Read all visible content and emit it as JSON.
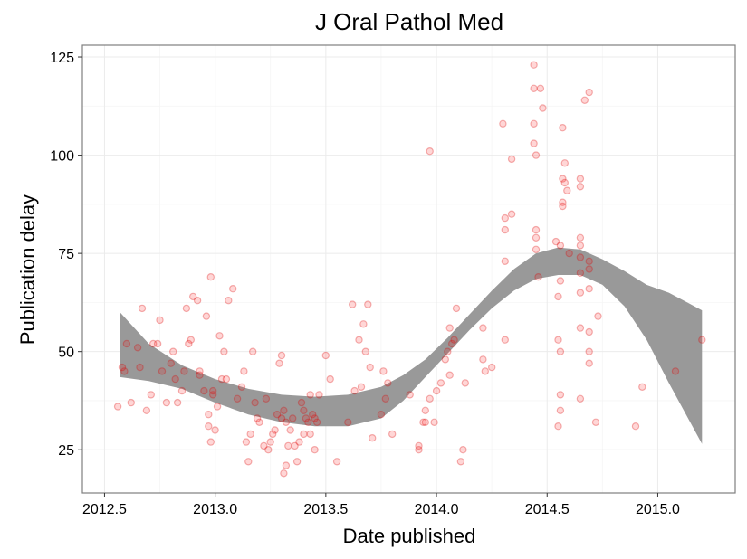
{
  "chart_data": {
    "type": "scatter",
    "title": "J Oral Pathol Med",
    "xlabel": "Date published",
    "ylabel": "Publication delay",
    "xlim": [
      2012.4,
      2015.35
    ],
    "ylim": [
      14,
      128
    ],
    "x_ticks": [
      2012.5,
      2013.0,
      2013.5,
      2014.0,
      2014.5,
      2015.0
    ],
    "x_tick_labels": [
      "2012.5",
      "2013.0",
      "2013.5",
      "2014.0",
      "2014.5",
      "2015.0"
    ],
    "y_ticks": [
      25,
      50,
      75,
      100,
      125
    ],
    "y_tick_labels": [
      "25",
      "50",
      "75",
      "100",
      "125"
    ],
    "grid": true,
    "legend": "none",
    "point_color": "#ff0000",
    "band_color": "#999999",
    "points": [
      [
        2012.56,
        36
      ],
      [
        2012.58,
        46
      ],
      [
        2012.59,
        45
      ],
      [
        2012.6,
        52
      ],
      [
        2012.62,
        37
      ],
      [
        2012.65,
        51
      ],
      [
        2012.66,
        46
      ],
      [
        2012.67,
        61
      ],
      [
        2012.69,
        35
      ],
      [
        2012.71,
        39
      ],
      [
        2012.72,
        52
      ],
      [
        2012.74,
        52
      ],
      [
        2012.75,
        58
      ],
      [
        2012.76,
        45
      ],
      [
        2012.78,
        37
      ],
      [
        2012.8,
        47
      ],
      [
        2012.81,
        50
      ],
      [
        2012.82,
        43
      ],
      [
        2012.83,
        37
      ],
      [
        2012.85,
        40
      ],
      [
        2012.86,
        45
      ],
      [
        2012.87,
        61
      ],
      [
        2012.88,
        52
      ],
      [
        2012.89,
        53
      ],
      [
        2012.9,
        64
      ],
      [
        2012.92,
        63
      ],
      [
        2012.93,
        45
      ],
      [
        2012.93,
        44
      ],
      [
        2012.95,
        40
      ],
      [
        2012.96,
        59
      ],
      [
        2012.97,
        31
      ],
      [
        2012.97,
        34
      ],
      [
        2012.98,
        27
      ],
      [
        2012.98,
        69
      ],
      [
        2012.99,
        39
      ],
      [
        2012.99,
        40
      ],
      [
        2013.0,
        30
      ],
      [
        2013.01,
        36
      ],
      [
        2013.02,
        54
      ],
      [
        2013.03,
        43
      ],
      [
        2013.04,
        50
      ],
      [
        2013.05,
        43
      ],
      [
        2013.06,
        63
      ],
      [
        2013.08,
        66
      ],
      [
        2013.1,
        38
      ],
      [
        2013.12,
        41
      ],
      [
        2013.13,
        45
      ],
      [
        2013.14,
        27
      ],
      [
        2013.15,
        22
      ],
      [
        2013.16,
        29
      ],
      [
        2013.17,
        50
      ],
      [
        2013.18,
        37
      ],
      [
        2013.19,
        33
      ],
      [
        2013.2,
        32
      ],
      [
        2013.22,
        26
      ],
      [
        2013.23,
        38
      ],
      [
        2013.24,
        25
      ],
      [
        2013.25,
        27
      ],
      [
        2013.26,
        29
      ],
      [
        2013.27,
        30
      ],
      [
        2013.28,
        34
      ],
      [
        2013.29,
        47
      ],
      [
        2013.3,
        49
      ],
      [
        2013.3,
        33
      ],
      [
        2013.31,
        35
      ],
      [
        2013.31,
        19
      ],
      [
        2013.32,
        21
      ],
      [
        2013.32,
        32
      ],
      [
        2013.33,
        26
      ],
      [
        2013.34,
        30
      ],
      [
        2013.35,
        33
      ],
      [
        2013.36,
        26
      ],
      [
        2013.37,
        22
      ],
      [
        2013.38,
        27
      ],
      [
        2013.39,
        37
      ],
      [
        2013.4,
        35
      ],
      [
        2013.4,
        29
      ],
      [
        2013.41,
        33
      ],
      [
        2013.42,
        32
      ],
      [
        2013.43,
        39
      ],
      [
        2013.43,
        29
      ],
      [
        2013.44,
        34
      ],
      [
        2013.45,
        33
      ],
      [
        2013.45,
        25
      ],
      [
        2013.46,
        32
      ],
      [
        2013.47,
        39
      ],
      [
        2013.5,
        49
      ],
      [
        2013.52,
        43
      ],
      [
        2013.55,
        22
      ],
      [
        2013.6,
        32
      ],
      [
        2013.62,
        62
      ],
      [
        2013.63,
        40
      ],
      [
        2013.65,
        53
      ],
      [
        2013.66,
        41
      ],
      [
        2013.67,
        57
      ],
      [
        2013.68,
        50
      ],
      [
        2013.69,
        62
      ],
      [
        2013.7,
        46
      ],
      [
        2013.71,
        28
      ],
      [
        2013.75,
        34
      ],
      [
        2013.76,
        45
      ],
      [
        2013.77,
        38
      ],
      [
        2013.78,
        42
      ],
      [
        2013.8,
        29
      ],
      [
        2013.88,
        39
      ],
      [
        2013.92,
        26
      ],
      [
        2013.92,
        25
      ],
      [
        2013.94,
        32
      ],
      [
        2013.95,
        35
      ],
      [
        2013.95,
        32
      ],
      [
        2013.97,
        38
      ],
      [
        2013.97,
        101
      ],
      [
        2013.99,
        32
      ],
      [
        2014.0,
        40
      ],
      [
        2014.02,
        42
      ],
      [
        2014.04,
        48
      ],
      [
        2014.05,
        50
      ],
      [
        2014.06,
        44
      ],
      [
        2014.06,
        56
      ],
      [
        2014.07,
        52
      ],
      [
        2014.08,
        53
      ],
      [
        2014.09,
        61
      ],
      [
        2014.11,
        22
      ],
      [
        2014.12,
        25
      ],
      [
        2014.13,
        42
      ],
      [
        2014.21,
        48
      ],
      [
        2014.21,
        56
      ],
      [
        2014.22,
        45
      ],
      [
        2014.25,
        46
      ],
      [
        2014.3,
        108
      ],
      [
        2014.31,
        84
      ],
      [
        2014.31,
        81
      ],
      [
        2014.31,
        73
      ],
      [
        2014.31,
        53
      ],
      [
        2014.34,
        85
      ],
      [
        2014.34,
        99
      ],
      [
        2014.44,
        123
      ],
      [
        2014.44,
        117
      ],
      [
        2014.44,
        108
      ],
      [
        2014.44,
        103
      ],
      [
        2014.45,
        100
      ],
      [
        2014.45,
        81
      ],
      [
        2014.45,
        79
      ],
      [
        2014.45,
        76
      ],
      [
        2014.46,
        69
      ],
      [
        2014.47,
        117
      ],
      [
        2014.48,
        112
      ],
      [
        2014.54,
        78
      ],
      [
        2014.55,
        31
      ],
      [
        2014.55,
        53
      ],
      [
        2014.55,
        64
      ],
      [
        2014.56,
        77
      ],
      [
        2014.56,
        39
      ],
      [
        2014.56,
        35
      ],
      [
        2014.56,
        50
      ],
      [
        2014.56,
        68
      ],
      [
        2014.57,
        107
      ],
      [
        2014.57,
        94
      ],
      [
        2014.57,
        88
      ],
      [
        2014.57,
        87
      ],
      [
        2014.58,
        98
      ],
      [
        2014.58,
        93
      ],
      [
        2014.59,
        91
      ],
      [
        2014.6,
        75
      ],
      [
        2014.65,
        94
      ],
      [
        2014.65,
        92
      ],
      [
        2014.65,
        79
      ],
      [
        2014.65,
        77
      ],
      [
        2014.65,
        74
      ],
      [
        2014.65,
        70
      ],
      [
        2014.65,
        65
      ],
      [
        2014.65,
        56
      ],
      [
        2014.65,
        38
      ],
      [
        2014.67,
        114
      ],
      [
        2014.69,
        116
      ],
      [
        2014.69,
        73
      ],
      [
        2014.69,
        71
      ],
      [
        2014.69,
        66
      ],
      [
        2014.69,
        55
      ],
      [
        2014.69,
        50
      ],
      [
        2014.69,
        47
      ],
      [
        2014.72,
        32
      ],
      [
        2014.73,
        59
      ],
      [
        2014.9,
        31
      ],
      [
        2014.93,
        41
      ],
      [
        2015.08,
        45
      ],
      [
        2015.2,
        53
      ]
    ],
    "smooth_band": {
      "x": [
        2012.57,
        2012.7,
        2012.85,
        2013.0,
        2013.15,
        2013.3,
        2013.45,
        2013.6,
        2013.75,
        2013.85,
        2013.95,
        2014.05,
        2014.15,
        2014.25,
        2014.35,
        2014.45,
        2014.55,
        2014.65,
        2014.75,
        2014.85,
        2014.95,
        2015.05,
        2015.2
      ],
      "ymin": [
        43.5,
        42.5,
        40.5,
        37.0,
        34.0,
        32.0,
        31.0,
        31.0,
        33.0,
        37.5,
        43.5,
        49.5,
        55.5,
        61.0,
        65.5,
        68.5,
        69.5,
        69.5,
        67.0,
        61.5,
        53.0,
        42.0,
        26.5
      ],
      "ymax": [
        60.0,
        52.0,
        46.5,
        43.0,
        40.5,
        39.0,
        38.5,
        39.0,
        41.0,
        44.0,
        48.0,
        53.5,
        59.5,
        65.5,
        71.0,
        75.0,
        76.5,
        76.0,
        73.5,
        70.5,
        67.0,
        65.0,
        60.5
      ]
    }
  }
}
